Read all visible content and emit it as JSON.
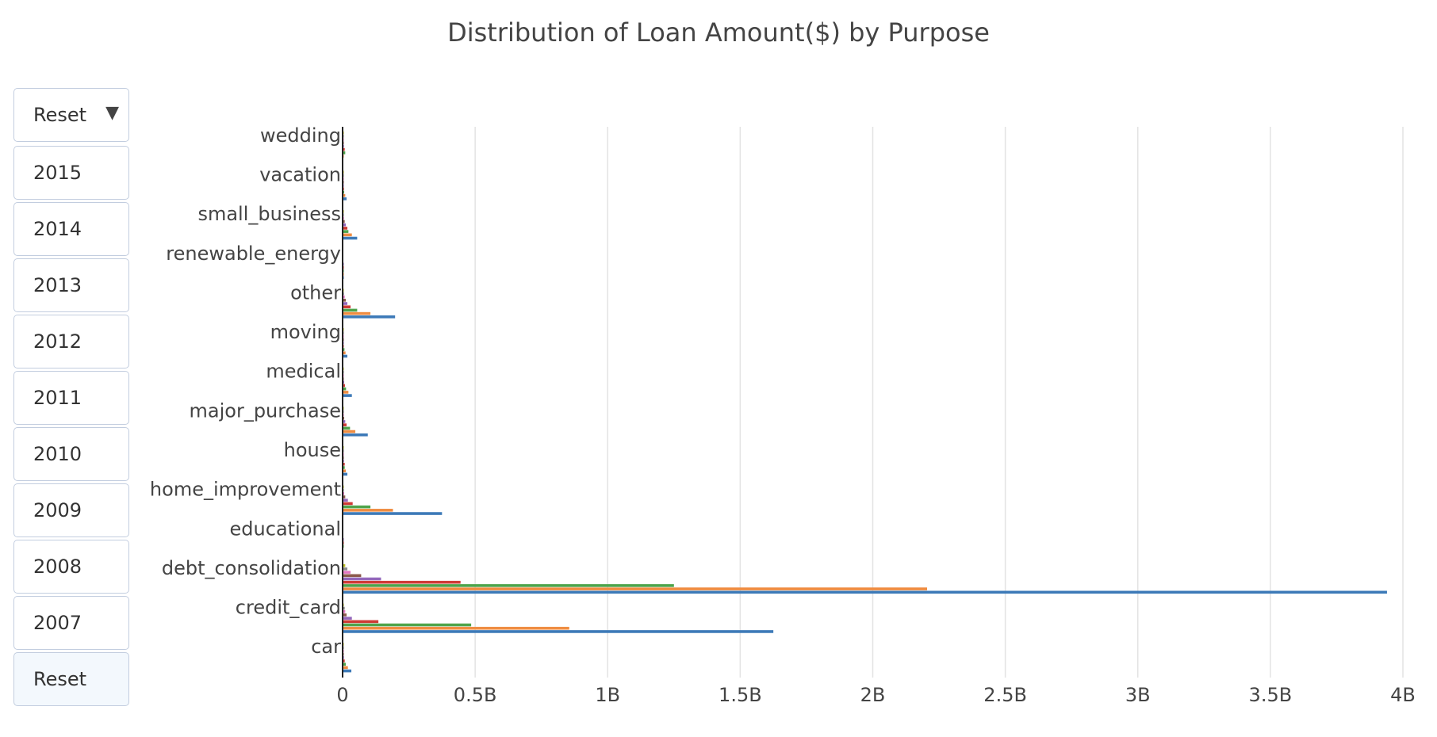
{
  "title": "Distribution of Loan Amount($) by Purpose",
  "menu": {
    "dropdown_label": "Reset",
    "dropdown_caret": "▼",
    "buttons": [
      "2015",
      "2014",
      "2013",
      "2012",
      "2011",
      "2010",
      "2009",
      "2008",
      "2007",
      "Reset"
    ]
  },
  "chart_data": {
    "type": "bar",
    "orientation": "horizontal",
    "title": "Distribution of Loan Amount($) by Purpose",
    "categories": [
      "car",
      "credit_card",
      "debt_consolidation",
      "educational",
      "home_improvement",
      "house",
      "major_purchase",
      "medical",
      "moving",
      "other",
      "renewable_energy",
      "small_business",
      "vacation",
      "wedding"
    ],
    "xlim": [
      0,
      4000000000
    ],
    "x_ticks": [
      0,
      500000000,
      1000000000,
      1500000000,
      2000000000,
      2500000000,
      3000000000,
      3500000000,
      4000000000
    ],
    "x_tick_labels": [
      "0",
      "0.5B",
      "1B",
      "1.5B",
      "2B",
      "2.5B",
      "3B",
      "3.5B",
      "4B"
    ],
    "grid": true,
    "legend": "none",
    "series": [
      {
        "color": "#3d7ab8",
        "values": [
          33000000,
          1625000000,
          3940000000,
          0,
          375000000,
          18000000,
          95000000,
          35000000,
          18000000,
          198000000,
          3000000,
          55000000,
          15000000,
          0
        ]
      },
      {
        "color": "#ef8d42",
        "values": [
          20000000,
          855000000,
          2205000000,
          0,
          190000000,
          12000000,
          48000000,
          22000000,
          11000000,
          105000000,
          2000000,
          35000000,
          10000000,
          2000000
        ]
      },
      {
        "color": "#4ea44b",
        "values": [
          12000000,
          485000000,
          1250000000,
          1000000,
          105000000,
          8000000,
          28000000,
          13000000,
          7000000,
          55000000,
          1000000,
          22000000,
          6000000,
          10000000
        ]
      },
      {
        "color": "#cf3b36",
        "values": [
          8000000,
          135000000,
          445000000,
          1000000,
          38000000,
          8000000,
          15000000,
          9000000,
          4000000,
          30000000,
          1000000,
          18000000,
          5000000,
          8000000
        ]
      },
      {
        "color": "#9367bb",
        "values": [
          5000000,
          35000000,
          145000000,
          1000000,
          20000000,
          5000000,
          10000000,
          6000000,
          3000000,
          18000000,
          1000000,
          12000000,
          4000000,
          5000000
        ]
      },
      {
        "color": "#8c5a4c",
        "values": [
          3000000,
          15000000,
          70000000,
          0,
          10000000,
          3000000,
          6000000,
          4000000,
          2000000,
          12000000,
          0,
          8000000,
          3000000,
          4000000
        ]
      },
      {
        "color": "#e377c2",
        "values": [
          2000000,
          10000000,
          30000000,
          0,
          6000000,
          2000000,
          4000000,
          3000000,
          1000000,
          8000000,
          0,
          5000000,
          2000000,
          3000000
        ]
      },
      {
        "color": "#8c8c8c",
        "values": [
          1000000,
          8000000,
          18000000,
          0,
          4000000,
          1000000,
          3000000,
          2000000,
          1000000,
          5000000,
          0,
          3000000,
          1000000,
          2000000
        ]
      },
      {
        "color": "#bcbd22",
        "values": [
          1000000,
          4000000,
          10000000,
          0,
          2000000,
          1000000,
          2000000,
          1000000,
          1000000,
          3000000,
          0,
          2000000,
          1000000,
          1000000
        ]
      }
    ]
  }
}
